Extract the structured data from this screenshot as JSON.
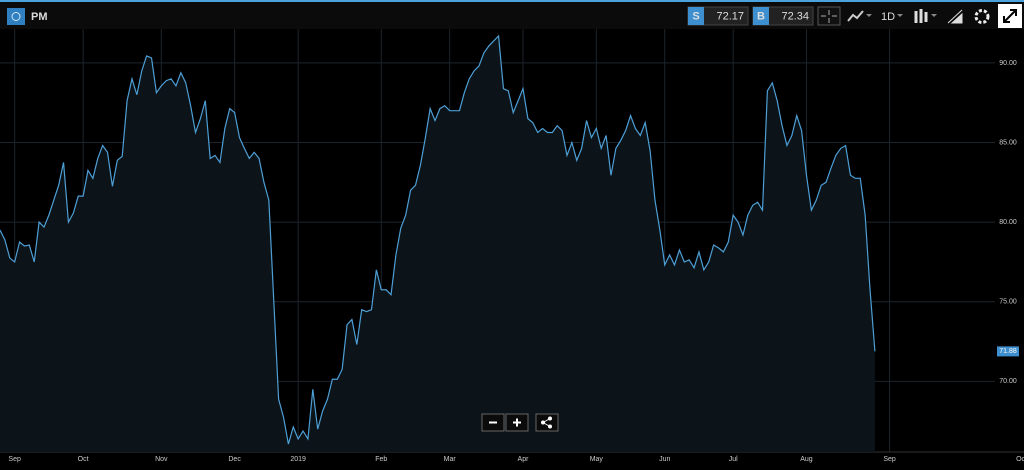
{
  "toolbar": {
    "symbol": "PM",
    "sell_label": "S",
    "sell_price": 72.17,
    "buy_label": "B",
    "buy_price": 72.34,
    "interval": "1D"
  },
  "chart_data": {
    "type": "area",
    "color": "#4d9fd6",
    "fill": "#0c1419",
    "values": [
      79.5,
      78.88,
      77.75,
      77.5,
      78.75,
      78.5,
      78.56,
      77.5,
      80,
      79.69,
      80.44,
      81.38,
      82.31,
      83.75,
      80,
      80.56,
      81.63,
      81.63,
      83.25,
      82.75,
      84,
      84.81,
      84.38,
      82.25,
      83.88,
      84.13,
      87.63,
      89,
      88,
      89.5,
      90.44,
      90.31,
      88.13,
      88.56,
      88.88,
      89,
      88.56,
      89.38,
      88.75,
      87.31,
      85.63,
      86.5,
      87.63,
      84,
      84.19,
      83.75,
      85.88,
      87.13,
      86.88,
      85.31,
      84.63,
      84,
      84.38,
      84,
      82.5,
      81.38,
      75.13,
      68.88,
      67.75,
      66.06,
      67.13,
      66.38,
      66.88,
      66.38,
      69.5,
      67,
      68.13,
      68.88,
      70.13,
      70.13,
      70.75,
      73.56,
      73.88,
      72.31,
      74.5,
      74.38,
      74.5,
      77,
      75.75,
      75.75,
      75.44,
      77.94,
      79.63,
      80.44,
      82,
      82.31,
      83.56,
      85.25,
      87.13,
      86.38,
      87.13,
      87.31,
      87,
      87,
      87,
      88.13,
      89,
      89.5,
      89.81,
      90.63,
      91.06,
      91.38,
      91.69,
      88.38,
      88.25,
      86.88,
      87.63,
      88.38,
      86.5,
      86.25,
      85.63,
      85.88,
      85.63,
      85.63,
      86.06,
      85.75,
      84.19,
      85,
      83.88,
      84.63,
      86.38,
      85.31,
      85.88,
      84.63,
      85.44,
      82.94,
      84.63,
      85.13,
      85.75,
      86.69,
      85.88,
      85.44,
      86.25,
      84.5,
      81.38,
      79.5,
      77.31,
      77.94,
      77.31,
      78.25,
      77.5,
      77.63,
      77.13,
      78.13,
      77,
      77.5,
      78.56,
      78.38,
      78.13,
      78.75,
      80.44,
      80,
      79.19,
      80.44,
      81.06,
      81.25,
      80.75,
      88.25,
      88.75,
      87.63,
      86.06,
      84.81,
      85.44,
      86.69,
      85.75,
      82.94,
      80.75,
      81.38,
      82.31,
      82.5,
      83.38,
      84.19,
      84.63,
      84.81,
      82.94,
      82.75,
      82.75,
      80.44,
      75.75,
      71.88
    ],
    "xlim": [
      0,
      209.5
    ],
    "xticks": [
      {
        "value": 3,
        "label": "Sep"
      },
      {
        "value": 17,
        "label": "Oct"
      },
      {
        "value": 33,
        "label": "Nov"
      },
      {
        "value": 48,
        "label": "Dec"
      },
      {
        "value": 61,
        "label": "2019"
      },
      {
        "value": 78,
        "label": "Feb"
      },
      {
        "value": 92,
        "label": "Mar"
      },
      {
        "value": 107,
        "label": "Apr"
      },
      {
        "value": 122,
        "label": "May"
      },
      {
        "value": 136,
        "label": "Jun"
      },
      {
        "value": 150,
        "label": "Jul"
      },
      {
        "value": 165,
        "label": "Aug"
      },
      {
        "value": 182,
        "label": "Sep"
      },
      {
        "value": 209,
        "label": "Oct"
      }
    ],
    "ylim": [
      65.56,
      92.13
    ],
    "yticks": [
      {
        "value": 70,
        "label": "70.00"
      },
      {
        "value": 75,
        "label": "75.00"
      },
      {
        "value": 80,
        "label": "80.00"
      },
      {
        "value": 85,
        "label": "85.00"
      },
      {
        "value": 90,
        "label": "90.00"
      }
    ],
    "grid": true
  }
}
